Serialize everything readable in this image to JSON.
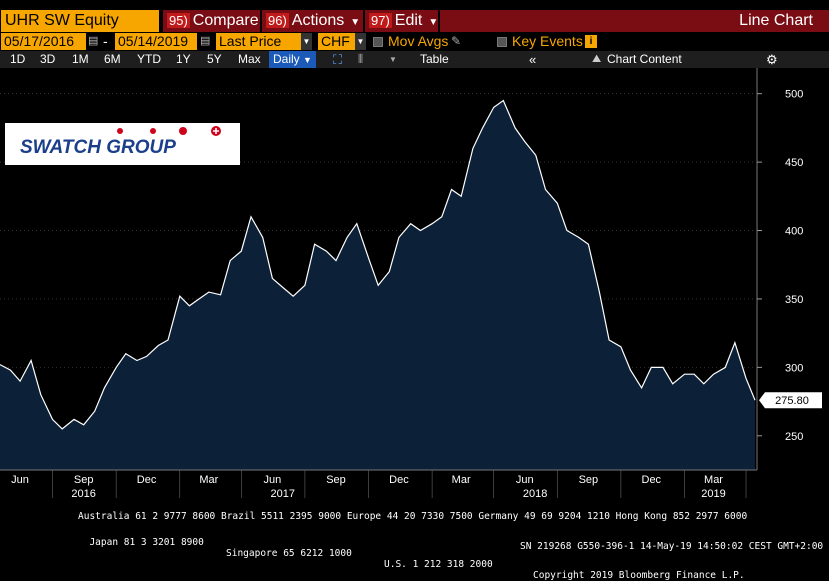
{
  "toolbar": {
    "ticker": "UHR SW Equity",
    "compare": {
      "num": "95)",
      "label": "Compare"
    },
    "actions": {
      "num": "96)",
      "label": "Actions"
    },
    "edit": {
      "num": "97)",
      "label": "Edit"
    },
    "title": "Line Chart"
  },
  "controls": {
    "start_date": "05/17/2016",
    "separator": "-",
    "end_date": "05/14/2019",
    "field": "Last Price",
    "currency": "CHF",
    "mov_avgs": "Mov Avgs",
    "key_events": "Key Events",
    "key_events_badge": "i"
  },
  "periods": [
    "1D",
    "3D",
    "1M",
    "6M",
    "YTD",
    "1Y",
    "5Y",
    "Max"
  ],
  "frequency": "Daily",
  "table_label": "Table",
  "chart_content_label": "Chart Content",
  "logo": {
    "text": "SWATCH GROUP",
    "text_color": "#1b3f8b",
    "dot_color": "#d0021b"
  },
  "colors": {
    "ticker_bg": "#f7a600",
    "menu_bg": "#7a0c13",
    "fill": "#0c2038",
    "line": "#ffffff",
    "active": "#1b5ab8"
  },
  "footer": {
    "line1": "Australia 61 2 9777 8600 Brazil 5511 2395 9000 Europe 44 20 7330 7500 Germany 49 69 9204 1210 Hong Kong 852 2977 6000",
    "line2a": "Japan 81 3 3201 8900",
    "line2b": "Singapore 65 6212 1000",
    "line2c": "U.S. 1 212 318 2000",
    "line2d": "Copyright 2019 Bloomberg Finance L.P.",
    "line3": "SN 219268 G550-396-1 14-May-19 14:50:02 CEST GMT+2:00"
  },
  "chart_data": {
    "type": "area",
    "series": [
      {
        "name": "UHR SW Equity",
        "last_value_label": "275.80"
      }
    ],
    "ylim": [
      225,
      510
    ],
    "y_ticks": [
      250,
      300,
      350,
      400,
      450,
      500
    ],
    "x_month_ticks": [
      "Jun",
      "Sep",
      "Dec",
      "Mar",
      "Jun",
      "Sep",
      "Dec",
      "Mar",
      "Jun",
      "Sep",
      "Dec",
      "Mar"
    ],
    "x_year_labels": [
      "2016",
      "2017",
      "2018",
      "2019"
    ],
    "x": [
      "2016-05-17",
      "2016-06-01",
      "2016-06-15",
      "2016-07-01",
      "2016-07-15",
      "2016-08-01",
      "2016-08-15",
      "2016-09-01",
      "2016-09-15",
      "2016-10-01",
      "2016-10-15",
      "2016-11-01",
      "2016-11-15",
      "2016-12-01",
      "2016-12-15",
      "2017-01-01",
      "2017-01-15",
      "2017-02-01",
      "2017-02-15",
      "2017-03-01",
      "2017-03-15",
      "2017-04-01",
      "2017-04-15",
      "2017-05-01",
      "2017-05-15",
      "2017-06-01",
      "2017-06-15",
      "2017-07-01",
      "2017-07-15",
      "2017-08-01",
      "2017-08-15",
      "2017-09-01",
      "2017-09-15",
      "2017-10-01",
      "2017-10-15",
      "2017-11-01",
      "2017-11-15",
      "2017-12-01",
      "2017-12-15",
      "2018-01-01",
      "2018-01-15",
      "2018-02-01",
      "2018-02-15",
      "2018-03-01",
      "2018-03-15",
      "2018-04-01",
      "2018-04-15",
      "2018-05-01",
      "2018-05-15",
      "2018-06-01",
      "2018-06-15",
      "2018-07-01",
      "2018-07-15",
      "2018-08-01",
      "2018-08-15",
      "2018-09-01",
      "2018-09-15",
      "2018-10-01",
      "2018-10-15",
      "2018-11-01",
      "2018-11-15",
      "2018-12-01",
      "2018-12-15",
      "2019-01-01",
      "2019-01-15",
      "2019-02-01",
      "2019-02-15",
      "2019-03-01",
      "2019-03-15",
      "2019-04-01",
      "2019-04-15",
      "2019-05-01",
      "2019-05-14"
    ],
    "values": [
      302,
      298,
      290,
      305,
      280,
      262,
      255,
      262,
      258,
      268,
      285,
      300,
      310,
      305,
      308,
      316,
      320,
      352,
      345,
      350,
      355,
      353,
      378,
      385,
      410,
      395,
      365,
      358,
      352,
      360,
      390,
      385,
      378,
      395,
      405,
      380,
      360,
      370,
      395,
      405,
      400,
      405,
      410,
      430,
      425,
      460,
      475,
      490,
      495,
      475,
      465,
      455,
      430,
      420,
      400,
      395,
      390,
      355,
      320,
      315,
      298,
      285,
      300,
      300,
      288,
      295,
      295,
      288,
      295,
      300,
      318,
      292,
      276
    ]
  }
}
